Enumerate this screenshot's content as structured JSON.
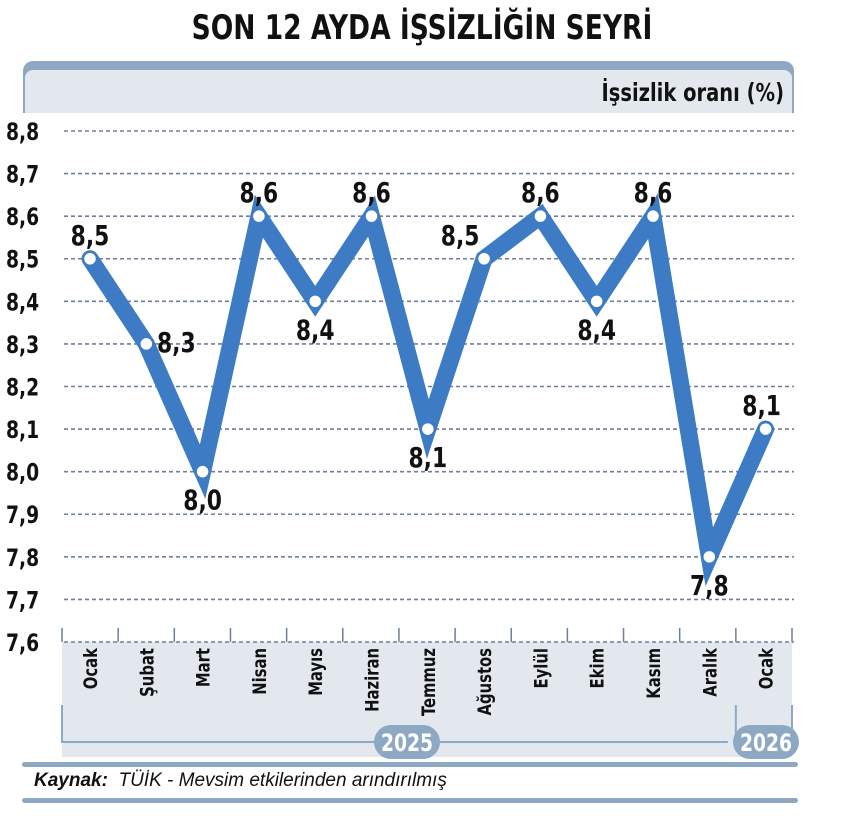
{
  "title": "SON 12 AYDA İŞSİZLİĞİN SEYRİ",
  "unit_label": "İşsizlik oranı (%)",
  "source_label": "Kaynak:",
  "source_text": "TÜİK - Mevsim etkilerinden arındırılmış",
  "colors": {
    "line": "#3d7cc4",
    "band": "#8da8c3",
    "panel": "#e3e8ef",
    "grid": "#6d7f99"
  },
  "chart_data": {
    "type": "line",
    "title": "SON 12 AYDA İŞSİZLİĞİN SEYRİ",
    "ylabel": "İşsizlik oranı (%)",
    "xlabel": "",
    "ylim": [
      7.6,
      8.8
    ],
    "yticks": [
      "8,8",
      "8,7",
      "8,6",
      "8,5",
      "8,4",
      "8,3",
      "8,2",
      "8,1",
      "8,0",
      "7,9",
      "7,8",
      "7,7",
      "7,6"
    ],
    "categories": [
      "Ocak",
      "Şubat",
      "Mart",
      "Nisan",
      "Mayıs",
      "Haziran",
      "Temmuz",
      "Ağustos",
      "Eylül",
      "Ekim",
      "Kasım",
      "Aralık",
      "Ocak"
    ],
    "values": [
      8.5,
      8.3,
      8.0,
      8.6,
      8.4,
      8.6,
      8.1,
      8.5,
      8.6,
      8.4,
      8.6,
      7.8,
      8.1
    ],
    "data_labels": [
      "8,5",
      "8,3",
      "8,0",
      "8,6",
      "8,4",
      "8,6",
      "8,1",
      "8,5",
      "8,6",
      "8,4",
      "8,6",
      "7,8",
      "8,1"
    ],
    "year_groups": [
      {
        "label": "2025",
        "from": 0,
        "to": 11
      },
      {
        "label": "2026",
        "from": 12,
        "to": 12
      }
    ],
    "grid": true,
    "legend": "none"
  }
}
